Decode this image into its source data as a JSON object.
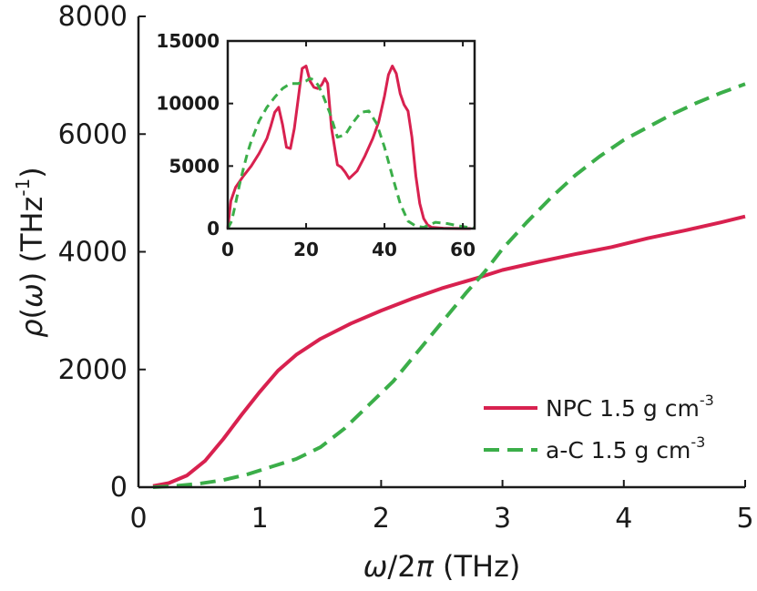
{
  "chart_data": [
    {
      "type": "line",
      "role": "main",
      "xlabel": {
        "sym": "ω",
        "rest": "/2",
        "pi": "π",
        "unit": " (THz)"
      },
      "ylabel": {
        "sym": "ρ",
        "open": "(",
        "w": "ω",
        "close": ") (THz",
        "sup": "-1",
        "end": ")"
      },
      "xlim": [
        0,
        5
      ],
      "ylim": [
        0,
        8000
      ],
      "xticks": [
        0,
        1,
        2,
        3,
        4,
        5
      ],
      "yticks": [
        0,
        2000,
        4000,
        6000,
        8000
      ],
      "grid": false,
      "legend_position": "bottom-right",
      "series": [
        {
          "name": "NPC 1.5 g cm",
          "name_sup": "-3",
          "color": "#d8214f",
          "style": "solid",
          "x": [
            0.12,
            0.25,
            0.4,
            0.55,
            0.7,
            0.85,
            1.0,
            1.15,
            1.3,
            1.5,
            1.75,
            2.0,
            2.25,
            2.5,
            2.8,
            3.0,
            3.3,
            3.6,
            3.9,
            4.2,
            4.5,
            4.8,
            5.0
          ],
          "y": [
            20,
            70,
            200,
            450,
            820,
            1230,
            1620,
            1980,
            2250,
            2520,
            2780,
            3000,
            3200,
            3380,
            3560,
            3690,
            3830,
            3960,
            4080,
            4230,
            4360,
            4500,
            4600
          ]
        },
        {
          "name": "a-C 1.5 g cm",
          "name_sup": "-3",
          "color": "#3bae49",
          "style": "dashed",
          "x": [
            0.12,
            0.3,
            0.5,
            0.7,
            0.9,
            1.1,
            1.3,
            1.5,
            1.7,
            1.9,
            2.1,
            2.3,
            2.5,
            2.7,
            2.85,
            3.0,
            3.2,
            3.4,
            3.6,
            3.8,
            4.0,
            4.2,
            4.4,
            4.6,
            4.8,
            5.0
          ],
          "y": [
            0,
            20,
            60,
            120,
            220,
            350,
            480,
            680,
            1000,
            1400,
            1800,
            2300,
            2800,
            3300,
            3650,
            4050,
            4500,
            4920,
            5300,
            5620,
            5900,
            6120,
            6340,
            6530,
            6700,
            6850
          ]
        }
      ]
    },
    {
      "type": "line",
      "role": "inset",
      "xlim": [
        0,
        63
      ],
      "ylim": [
        0,
        15000
      ],
      "xticks": [
        0,
        20,
        40,
        60
      ],
      "yticks": [
        0,
        5000,
        10000,
        15000
      ],
      "series": [
        {
          "name": "NPC 1.5 g cm-3",
          "color": "#d8214f",
          "style": "solid",
          "x": [
            0,
            0.8,
            2,
            4,
            6,
            8,
            10,
            11,
            12,
            13,
            14,
            15,
            16,
            17,
            18,
            19,
            20,
            21,
            22,
            23,
            24,
            24.8,
            25.5,
            26.5,
            28,
            29,
            30,
            31,
            33,
            35,
            37,
            38.5,
            40,
            41,
            42,
            43,
            44,
            45,
            46,
            47,
            48,
            49,
            50,
            51,
            52,
            55,
            58,
            62
          ],
          "y": [
            0,
            2200,
            3300,
            4200,
            5000,
            6000,
            7200,
            8200,
            9300,
            9700,
            8300,
            6500,
            6400,
            8000,
            10400,
            12800,
            13000,
            11800,
            11300,
            11200,
            11500,
            12000,
            11600,
            8000,
            5100,
            4900,
            4500,
            4000,
            4600,
            5800,
            7200,
            8500,
            10600,
            12300,
            13000,
            12400,
            10800,
            9900,
            9400,
            7300,
            4200,
            2000,
            800,
            300,
            100,
            30,
            10,
            0
          ]
        },
        {
          "name": "a-C 1.5 g cm-3",
          "color": "#3bae49",
          "style": "dashed",
          "x": [
            0,
            1,
            2,
            3,
            4,
            5,
            6,
            8,
            10,
            12,
            14,
            16,
            18,
            20,
            21,
            22,
            23,
            24,
            26,
            28,
            30,
            32,
            34,
            36,
            38,
            40,
            42,
            44,
            46,
            48,
            50,
            53,
            56,
            60,
            63
          ],
          "y": [
            0,
            600,
            2000,
            3500,
            4800,
            6000,
            7000,
            8600,
            9700,
            10500,
            11200,
            11600,
            11600,
            11800,
            12000,
            11900,
            11500,
            10900,
            9300,
            7300,
            7500,
            8500,
            9300,
            9400,
            8400,
            6500,
            4200,
            2000,
            600,
            200,
            100,
            500,
            400,
            150,
            50
          ]
        }
      ]
    }
  ]
}
